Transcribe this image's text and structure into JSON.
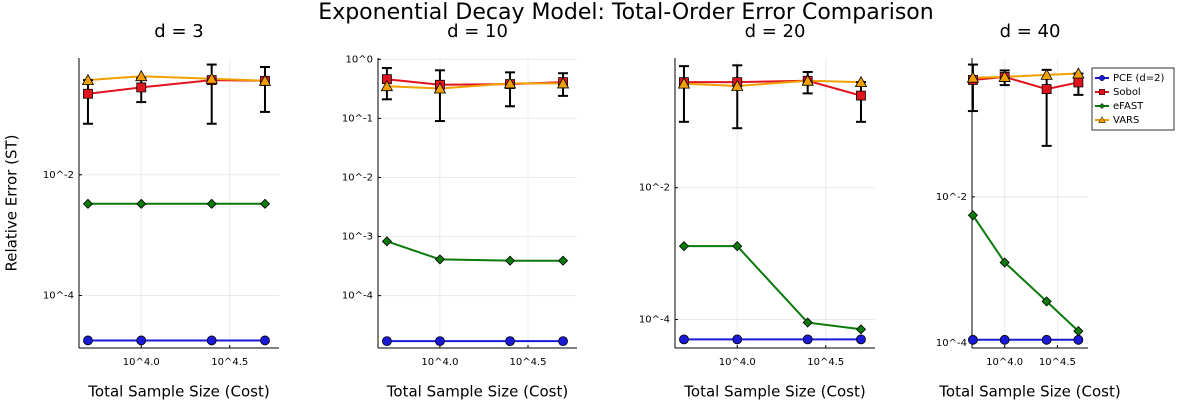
{
  "title": "Exponential Decay Model: Total-Order Error Comparison",
  "chart_data": [
    {
      "type": "line",
      "title": "d = 3",
      "x_label": "Total Sample Size (Cost)",
      "y_label": "Relative Error (ST)",
      "xscale": "log",
      "yscale": "log",
      "grid": true,
      "xlim": [
        4450,
        60000
      ],
      "xticks": [
        {
          "value": 10000,
          "label": "10^4.0"
        },
        {
          "value": 31623,
          "label": "10^4.5"
        }
      ],
      "ylim": [
        1.35e-05,
        0.86
      ],
      "yticks": [
        {
          "value": 0.01,
          "label": "10^-2"
        },
        {
          "value": 0.0001,
          "label": "10^-4"
        }
      ],
      "x": [
        5000,
        10000,
        25000,
        50000
      ],
      "series": [
        {
          "name": "PCE (d=2)",
          "color": "#1a1ad6",
          "marker": "circle",
          "values": [
            1.8e-05,
            1.8e-05,
            1.8e-05,
            1.8e-05
          ]
        },
        {
          "name": "Sobol",
          "color": "#e0141e",
          "marker": "square",
          "values": [
            0.22,
            0.28,
            0.37,
            0.36
          ],
          "errors": [
            0.15,
            0.12,
            0.3,
            0.25
          ]
        },
        {
          "name": "eFAST",
          "color": "#0a7a0a",
          "marker": "diamond",
          "values": [
            0.0033,
            0.0033,
            0.0033,
            0.0033
          ]
        },
        {
          "name": "VARS",
          "color": "#f2a000",
          "marker": "triangle",
          "values": [
            0.37,
            0.43,
            0.39,
            0.36
          ]
        }
      ]
    },
    {
      "type": "line",
      "title": "d = 10",
      "x_label": "Total Sample Size (Cost)",
      "xscale": "log",
      "yscale": "log",
      "grid": true,
      "xlim": [
        4450,
        60000
      ],
      "xticks": [
        {
          "value": 10000,
          "label": "10^4.0"
        },
        {
          "value": 31623,
          "label": "10^4.5"
        }
      ],
      "ylim": [
        1.3e-05,
        1.05
      ],
      "yticks": [
        {
          "value": 1,
          "label": "10^0"
        },
        {
          "value": 0.1,
          "label": "10^-1"
        },
        {
          "value": 0.01,
          "label": "10^-2"
        },
        {
          "value": 0.001,
          "label": "10^-3"
        },
        {
          "value": 0.0001,
          "label": "10^-4"
        }
      ],
      "x": [
        5000,
        10000,
        25000,
        50000
      ],
      "series": [
        {
          "name": "PCE (d=2)",
          "color": "#1a1ad6",
          "marker": "circle",
          "values": [
            1.7e-05,
            1.7e-05,
            1.7e-05,
            1.7e-05
          ]
        },
        {
          "name": "Sobol",
          "color": "#e0141e",
          "marker": "square",
          "values": [
            0.46,
            0.37,
            0.38,
            0.41
          ],
          "errors": [
            0.25,
            0.28,
            0.22,
            0.17
          ]
        },
        {
          "name": "eFAST",
          "color": "#0a7a0a",
          "marker": "diamond",
          "values": [
            0.00083,
            0.00041,
            0.00039,
            0.00039
          ]
        },
        {
          "name": "VARS",
          "color": "#f2a000",
          "marker": "triangle",
          "values": [
            0.35,
            0.32,
            0.39,
            0.39
          ]
        }
      ]
    },
    {
      "type": "line",
      "title": "d = 20",
      "x_label": "Total Sample Size (Cost)",
      "xscale": "log",
      "yscale": "log",
      "grid": true,
      "xlim": [
        4450,
        60000
      ],
      "xticks": [
        {
          "value": 10000,
          "label": "10^4.0"
        },
        {
          "value": 31623,
          "label": "10^4.5"
        }
      ],
      "ylim": [
        3.7e-05,
        0.93
      ],
      "yticks": [
        {
          "value": 0.01,
          "label": "10^-2"
        },
        {
          "value": 0.0001,
          "label": "10^-4"
        }
      ],
      "x": [
        5000,
        10000,
        25000,
        50000
      ],
      "series": [
        {
          "name": "PCE (d=2)",
          "color": "#1a1ad6",
          "marker": "circle",
          "values": [
            5e-05,
            5e-05,
            5e-05,
            5e-05
          ]
        },
        {
          "name": "Sobol",
          "color": "#e0141e",
          "marker": "square",
          "values": [
            0.4,
            0.4,
            0.42,
            0.25
          ],
          "errors": [
            0.3,
            0.32,
            0.15,
            0.15
          ]
        },
        {
          "name": "eFAST",
          "color": "#0a7a0a",
          "marker": "diamond",
          "values": [
            0.0013,
            0.0013,
            9e-05,
            7.1e-05
          ]
        },
        {
          "name": "VARS",
          "color": "#f2a000",
          "marker": "triangle",
          "values": [
            0.38,
            0.35,
            0.42,
            0.4
          ]
        }
      ]
    },
    {
      "type": "line",
      "title": "d = 40",
      "x_label": "Total Sample Size (Cost)",
      "xscale": "log",
      "yscale": "log",
      "grid": true,
      "legend": "top-right",
      "xlim": [
        4900,
        61700
      ],
      "xticks": [
        {
          "value": 10000,
          "label": "10^4.0"
        },
        {
          "value": 31623,
          "label": "10^4.5"
        }
      ],
      "ylim": [
        8.5e-05,
        0.8
      ],
      "yticks": [
        {
          "value": 0.01,
          "label": "10^-2"
        },
        {
          "value": 0.0001,
          "label": "10^-4"
        }
      ],
      "x": [
        5000,
        10000,
        25000,
        50000
      ],
      "series": [
        {
          "name": "PCE (d=2)",
          "color": "#1a1ad6",
          "marker": "circle",
          "values": [
            0.00011,
            0.00011,
            0.00011,
            0.00011
          ]
        },
        {
          "name": "Sobol",
          "color": "#e0141e",
          "marker": "square",
          "values": [
            0.4,
            0.44,
            0.3,
            0.37
          ],
          "errors": [
            0.25,
            0.1,
            0.25,
            0.12
          ]
        },
        {
          "name": "eFAST",
          "color": "#0a7a0a",
          "marker": "diamond",
          "values": [
            0.0056,
            0.00126,
            0.00037,
            0.000145
          ]
        },
        {
          "name": "VARS",
          "color": "#f2a000",
          "marker": "triangle",
          "values": [
            0.43,
            0.44,
            0.47,
            0.49
          ]
        }
      ]
    }
  ]
}
